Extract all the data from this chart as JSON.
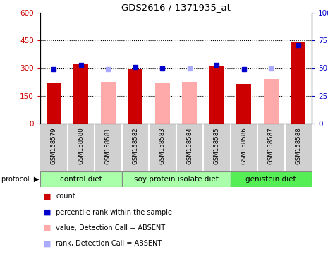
{
  "title": "GDS2616 / 1371935_at",
  "samples": [
    "GSM158579",
    "GSM158580",
    "GSM158581",
    "GSM158582",
    "GSM158583",
    "GSM158584",
    "GSM158585",
    "GSM158586",
    "GSM158587",
    "GSM158588"
  ],
  "count_values": [
    220,
    325,
    null,
    295,
    220,
    null,
    315,
    215,
    null,
    445
  ],
  "rank_values": [
    49,
    53,
    null,
    51,
    50,
    null,
    53,
    49,
    null,
    71
  ],
  "absent_value": [
    null,
    null,
    225,
    null,
    220,
    225,
    null,
    null,
    240,
    null
  ],
  "absent_rank": [
    null,
    null,
    49,
    null,
    null,
    50,
    null,
    null,
    50,
    null
  ],
  "groups": [
    {
      "label": "control diet",
      "start": 0,
      "end": 2
    },
    {
      "label": "soy protein isolate diet",
      "start": 3,
      "end": 6
    },
    {
      "label": "genistein diet",
      "start": 7,
      "end": 9
    }
  ],
  "group_colors": [
    "#aaffaa",
    "#aaffaa",
    "#55ee55"
  ],
  "ylim_left": [
    0,
    600
  ],
  "ylim_right": [
    0,
    100
  ],
  "yticks_left": [
    0,
    150,
    300,
    450,
    600
  ],
  "yticks_right": [
    0,
    25,
    50,
    75,
    100
  ],
  "ytick_labels_left": [
    "0",
    "150",
    "300",
    "450",
    "600"
  ],
  "ytick_labels_right": [
    "0",
    "25",
    "50",
    "75",
    "100%"
  ],
  "color_red": "#cc0000",
  "color_pink": "#ffaaaa",
  "color_blue": "#0000cc",
  "color_lightblue": "#aaaaff",
  "legend_items": [
    {
      "label": "count",
      "color": "#cc0000"
    },
    {
      "label": "percentile rank within the sample",
      "color": "#0000cc"
    },
    {
      "label": "value, Detection Call = ABSENT",
      "color": "#ffaaaa"
    },
    {
      "label": "rank, Detection Call = ABSENT",
      "color": "#aaaaff"
    }
  ]
}
